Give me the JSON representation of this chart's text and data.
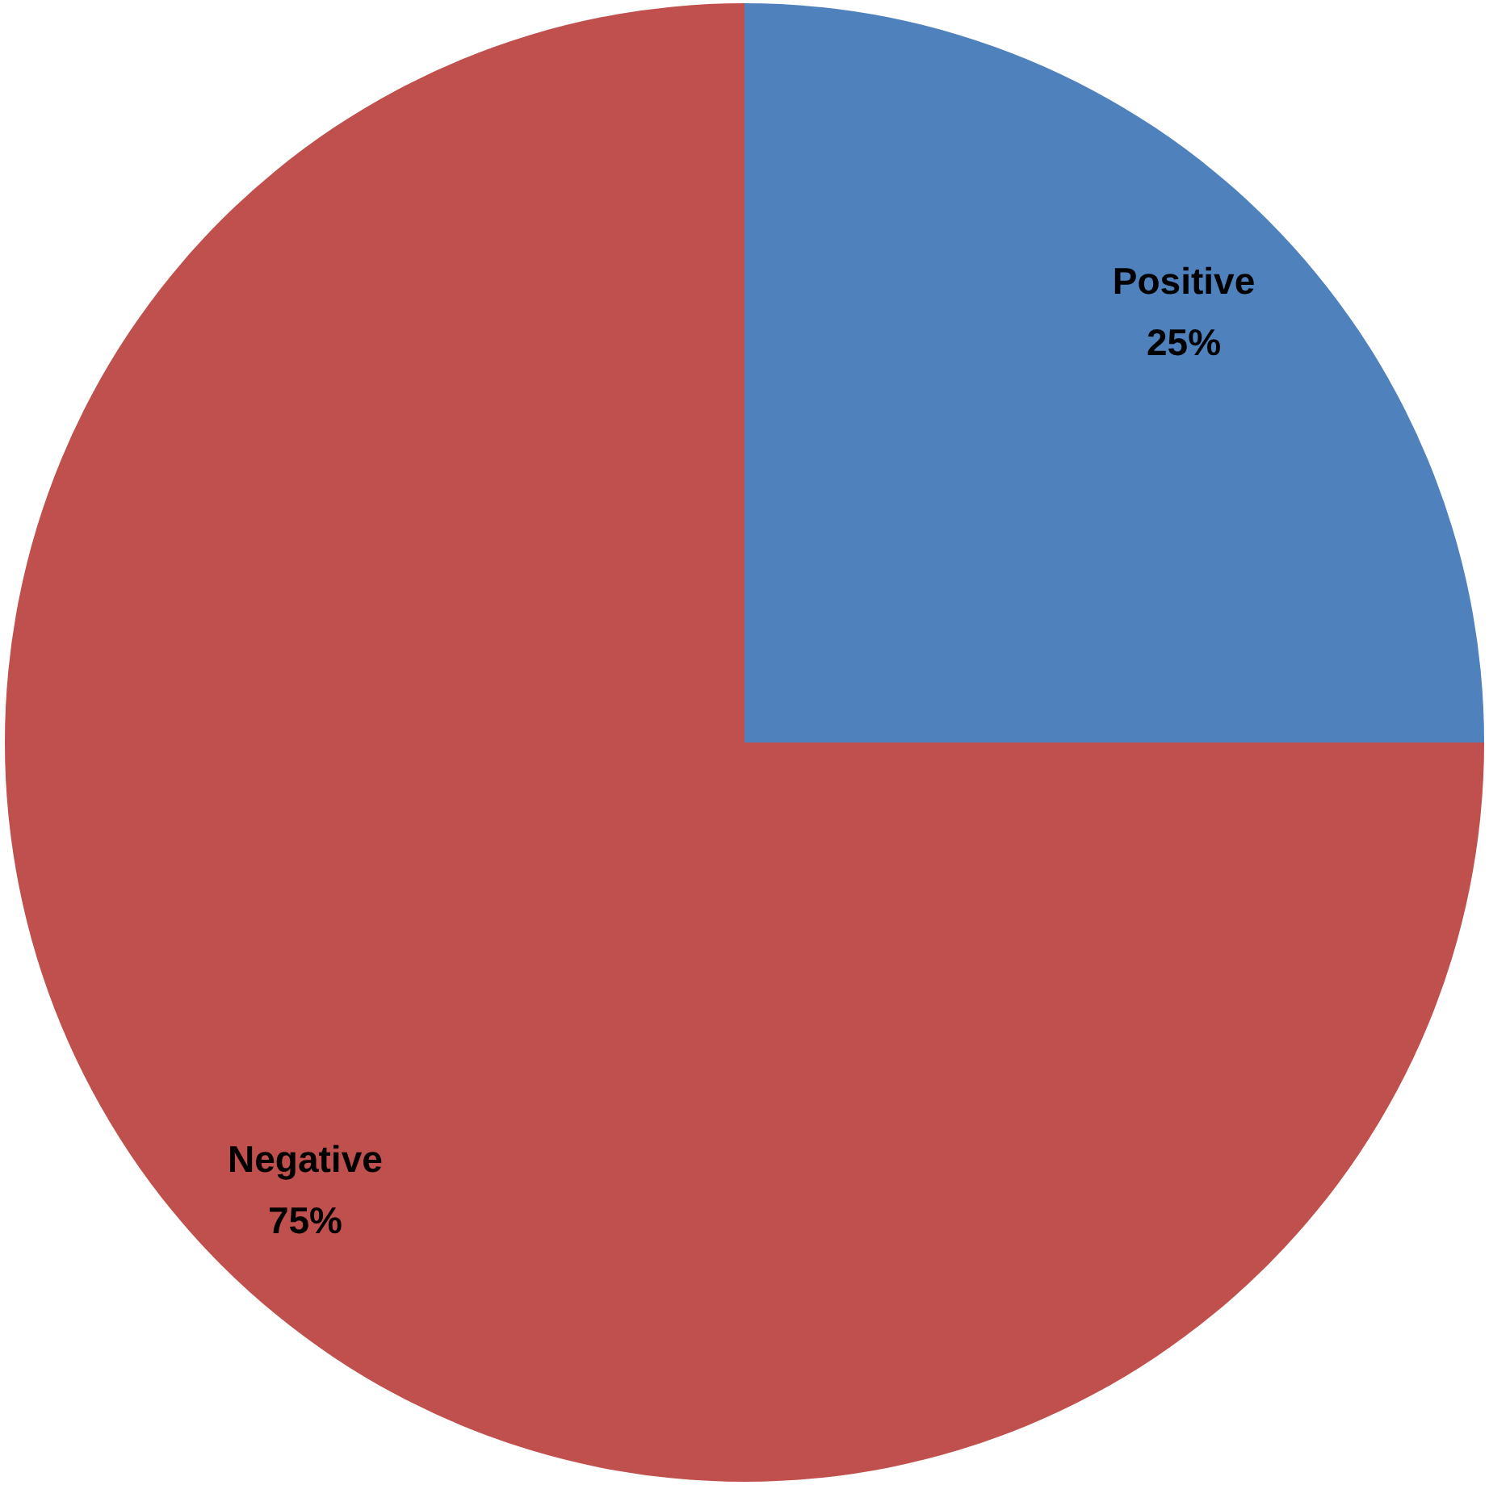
{
  "chart_data": {
    "type": "pie",
    "categories": [
      "Positive",
      "Negative"
    ],
    "values": [
      25,
      75
    ],
    "colors": [
      "#4f81bd",
      "#c0504d"
    ],
    "value_labels": [
      "25%",
      "75%"
    ]
  }
}
